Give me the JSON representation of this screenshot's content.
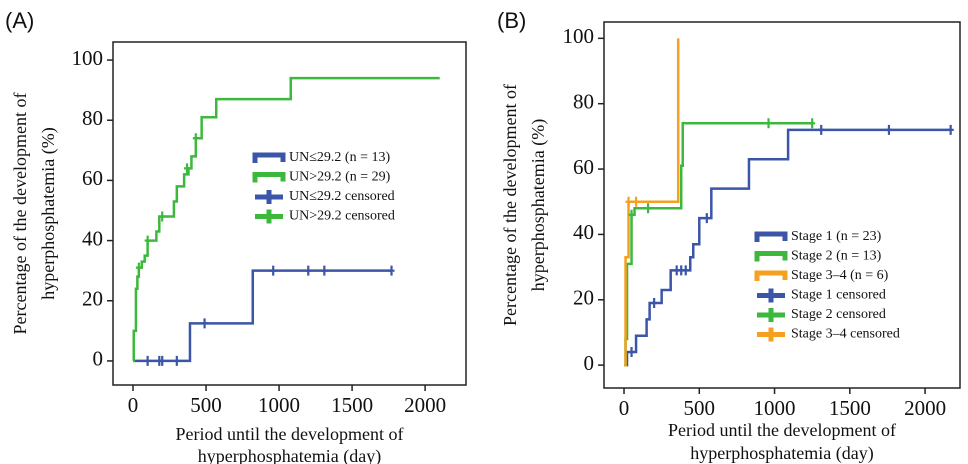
{
  "chart_data": [
    {
      "type": "step",
      "panel": "(A)",
      "ylabel": [
        "Percentage of the development of",
        "hyperphosphatemia (%)"
      ],
      "xlabel": [
        "Period until the development of",
        "hyperphosphatemia (day)"
      ],
      "xlim": [
        -137,
        2280
      ],
      "ylim": [
        -8,
        106
      ],
      "xticks": [
        0,
        500,
        1000,
        1500,
        2000
      ],
      "yticks": [
        0,
        20,
        40,
        60,
        80,
        100
      ],
      "series": [
        {
          "name": "UN≤29.2 (n = 13)",
          "color": "#3b55a8",
          "kind": "step",
          "x": [
            0,
            390,
            820,
            1770
          ],
          "values": [
            0,
            12.5,
            30,
            30
          ]
        },
        {
          "name": "UN>29.2 (n = 29)",
          "color": "#3cb93c",
          "kind": "step",
          "x": [
            0,
            5,
            20,
            30,
            40,
            60,
            80,
            100,
            160,
            180,
            280,
            300,
            350,
            380,
            400,
            430,
            470,
            570,
            1080,
            2100
          ],
          "values": [
            0,
            10,
            24,
            28,
            31,
            33,
            35,
            40,
            43,
            48,
            53,
            58,
            62,
            64,
            68,
            74,
            81,
            87,
            94,
            94
          ]
        },
        {
          "name": "UN≤29.2 censored",
          "color": "#3b55a8",
          "kind": "censored",
          "x": [
            100,
            180,
            200,
            300,
            490,
            960,
            1200,
            1310,
            1770
          ],
          "values": [
            0,
            0,
            0,
            0,
            12.5,
            30,
            30,
            30,
            30
          ]
        },
        {
          "name": "UN>29.2 censored",
          "color": "#3cb93c",
          "kind": "censored",
          "x": [
            40,
            100,
            200,
            370,
            430
          ],
          "values": [
            31,
            40,
            48,
            64,
            74
          ]
        }
      ]
    },
    {
      "type": "step",
      "panel": "(B)",
      "ylabel": [
        "Percentage of the development of",
        "hyperphosphatemia (%)"
      ],
      "xlabel": [
        "Period until the development of",
        "hyperphosphatemia (day)"
      ],
      "xlim": [
        -133,
        2232
      ],
      "ylim": [
        -7,
        105
      ],
      "xticks": [
        0,
        500,
        1000,
        1500,
        2000
      ],
      "yticks": [
        0,
        20,
        40,
        60,
        80,
        100
      ],
      "series": [
        {
          "name": "Stage 1 (n = 23)",
          "color": "#3b55a8",
          "kind": "step",
          "x": [
            0,
            20,
            80,
            150,
            170,
            250,
            310,
            440,
            460,
            500,
            580,
            830,
            1090,
            2170
          ],
          "values": [
            0,
            4,
            9,
            14,
            19,
            23,
            29,
            33,
            37,
            45,
            54,
            63,
            72,
            72
          ]
        },
        {
          "name": "Stage 2 (n = 13)",
          "color": "#3cb93c",
          "kind": "step",
          "x": [
            0,
            10,
            20,
            50,
            70,
            380,
            390,
            1250
          ],
          "values": [
            0,
            8,
            31,
            46,
            48,
            61,
            74,
            74
          ]
        },
        {
          "name": "Stage 3–4 (n = 6)",
          "color": "#f5a020",
          "kind": "step",
          "x": [
            0,
            10,
            30,
            360
          ],
          "values": [
            0,
            33,
            50,
            100
          ]
        },
        {
          "name": "Stage 1 censored",
          "color": "#3b55a8",
          "kind": "censored",
          "x": [
            50,
            200,
            350,
            380,
            410,
            550,
            1310,
            1760,
            2170
          ],
          "values": [
            4,
            19,
            29,
            29,
            29,
            45,
            72,
            72,
            72
          ]
        },
        {
          "name": "Stage 2 censored",
          "color": "#3cb93c",
          "kind": "censored",
          "x": [
            50,
            160,
            960,
            1250
          ],
          "values": [
            46,
            48,
            74,
            74
          ]
        },
        {
          "name": "Stage 3–4 censored",
          "color": "#f5a020",
          "kind": "censored",
          "x": [
            30,
            80
          ],
          "values": [
            50,
            50
          ]
        }
      ]
    }
  ]
}
